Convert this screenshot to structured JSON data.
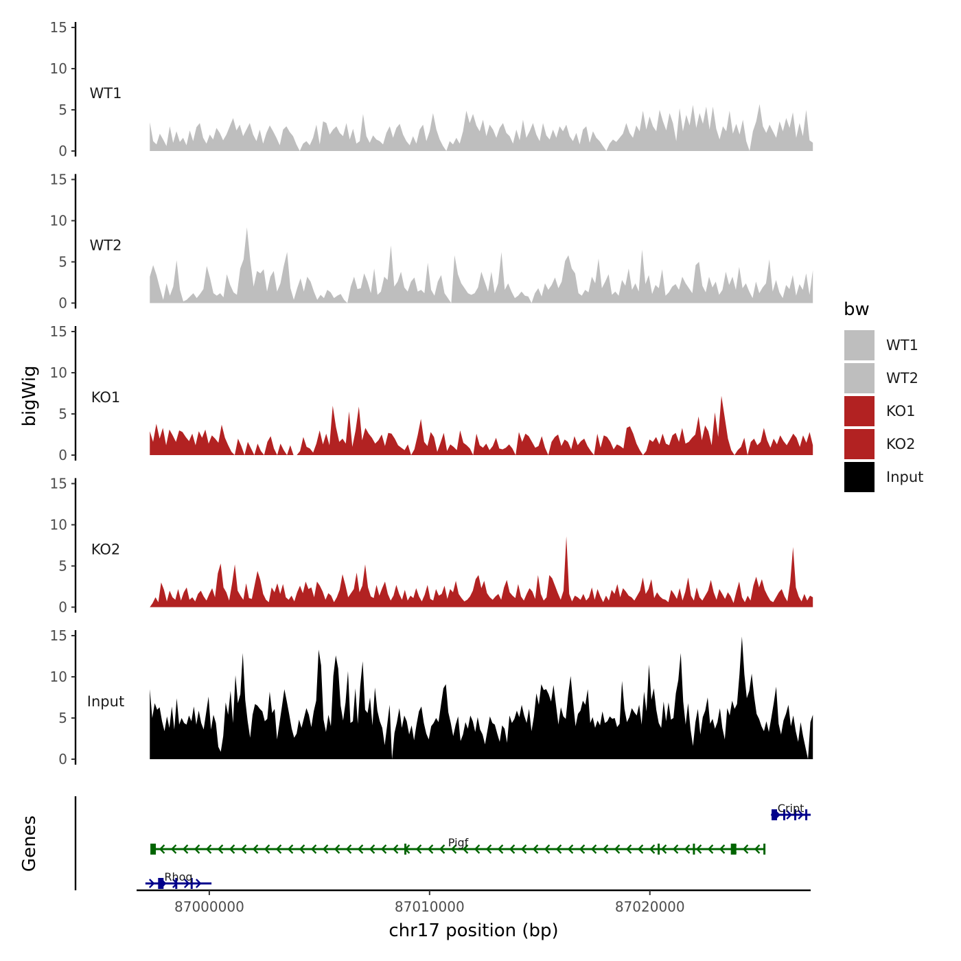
{
  "chart_data": {
    "type": "area",
    "title": "",
    "ylabel": "bigWig",
    "xlabel": "chr17 position (bp)",
    "xlim": [
      86996700,
      87027300
    ],
    "ylim": [
      0,
      15
    ],
    "y_ticks": [
      0,
      5,
      10,
      15
    ],
    "y_tick_labels": [
      "0",
      "5",
      "10",
      "15"
    ],
    "x_ticks": [
      87000000,
      87010000,
      87020000
    ],
    "x_tick_labels": [
      "87000000",
      "87010000",
      "87020000"
    ],
    "x_range": [
      86997300,
      87027400
    ],
    "genes_label": "Genes",
    "legend": {
      "title": "bw",
      "position": "right",
      "entries": [
        {
          "label": "WT1",
          "color": "#BEBEBE"
        },
        {
          "label": "WT2",
          "color": "#BEBEBE"
        },
        {
          "label": "KO1",
          "color": "#B22222"
        },
        {
          "label": "KO2",
          "color": "#B22222"
        },
        {
          "label": "Input",
          "color": "#000000"
        }
      ]
    },
    "series": [
      {
        "name": "WT1",
        "color": "#BEBEBE",
        "values": [
          3.5,
          1.2,
          0.8,
          2.1,
          1.4,
          0.6,
          3.0,
          1.0,
          2.4,
          1.1,
          1.6,
          0.7,
          2.5,
          1.2,
          2.9,
          3.4,
          1.6,
          0.9,
          2.0,
          1.4,
          2.8,
          2.2,
          1.3,
          2.0,
          3.0,
          4.0,
          2.5,
          3.2,
          1.8,
          2.6,
          3.4,
          2.0,
          1.2,
          2.6,
          0.9,
          2.2,
          3.1,
          2.4,
          1.6,
          0.7,
          2.6,
          3.0,
          2.3,
          1.8,
          0.8,
          0,
          0.9,
          1.2,
          0.7,
          1.6,
          3.2,
          0.8,
          3.6,
          3.4,
          2.0,
          2.6,
          3.0,
          2.2,
          1.8,
          3.4,
          1.4,
          2.7,
          0.9,
          1.2,
          4.5,
          1.8,
          1.0,
          1.9,
          1.4,
          1.2,
          0.8,
          2.2,
          3.0,
          1.6,
          2.8,
          3.3,
          2.0,
          1.2,
          0.7,
          1.8,
          0.9,
          2.6,
          3.2,
          1.2,
          2.4,
          4.6,
          2.6,
          1.4,
          0.6,
          0,
          1.2,
          0.8,
          1.6,
          0.9,
          2.4,
          4.9,
          3.4,
          4.5,
          3.1,
          2.4,
          3.8,
          1.8,
          3.2,
          2.6,
          1.6,
          2.8,
          3.4,
          2.2,
          1.8,
          0.9,
          2.6,
          1.3,
          3.8,
          1.6,
          2.4,
          3.4,
          2.0,
          1.2,
          3.4,
          1.9,
          1.4,
          2.6,
          1.6,
          3.0,
          2.4,
          3.2,
          1.8,
          1.2,
          2.2,
          0.8,
          2.6,
          3.0,
          1.0,
          2.4,
          1.6,
          1.2,
          0.6,
          0,
          0.9,
          1.4,
          1.1,
          1.6,
          2.1,
          3.4,
          2.2,
          1.6,
          3.1,
          2.4,
          4.9,
          2.6,
          4.2,
          3.0,
          2.4,
          5.0,
          3.6,
          2.5,
          4.6,
          3.4,
          1.2,
          5.2,
          2.4,
          4.4,
          3.1,
          5.6,
          2.8,
          4.6,
          3.3,
          5.4,
          2.6,
          5.4,
          2.7,
          1.4,
          3.0,
          2.4,
          4.9,
          2.1,
          3.3,
          2.0,
          3.8,
          1.2,
          0,
          2.4,
          3.6,
          5.7,
          3.0,
          2.2,
          3.2,
          2.4,
          1.6,
          3.6,
          2.4,
          4.0,
          2.8,
          4.7,
          1.6,
          3.4,
          1.8,
          5.0,
          1.3,
          1.0
        ]
      },
      {
        "name": "WT2",
        "color": "#BEBEBE",
        "values": [
          3.2,
          4.6,
          3.4,
          1.8,
          0.4,
          2.4,
          0.9,
          2.0,
          5.2,
          1.6,
          0.2,
          0.4,
          0.8,
          1.2,
          0.6,
          1.1,
          1.7,
          4.5,
          3.0,
          1.2,
          0.9,
          1.2,
          0.7,
          3.5,
          2.2,
          1.3,
          1.0,
          4.2,
          5.3,
          9.2,
          5.2,
          2.0,
          3.9,
          3.6,
          4.1,
          1.4,
          3.2,
          3.9,
          1.4,
          2.4,
          4.5,
          6.2,
          1.8,
          0.4,
          1.8,
          3.0,
          1.4,
          3.2,
          2.6,
          1.4,
          0.4,
          1.0,
          0.6,
          1.6,
          1.3,
          0.6,
          0.9,
          1.1,
          0.4,
          0,
          2.0,
          3.2,
          1.7,
          1.8,
          3.6,
          2.6,
          1.2,
          4.2,
          1.0,
          1.4,
          3.2,
          2.8,
          7.0,
          2.0,
          2.6,
          3.8,
          1.9,
          1.4,
          2.6,
          3.1,
          1.4,
          1.6,
          1.2,
          4.9,
          1.6,
          0.9,
          2.6,
          3.4,
          1.2,
          0.6,
          0,
          5.8,
          3.5,
          2.4,
          1.8,
          1.2,
          1.0,
          1.2,
          1.9,
          3.8,
          2.6,
          1.4,
          3.8,
          1.2,
          2.4,
          6.2,
          1.6,
          2.4,
          1.4,
          0.6,
          0.9,
          1.4,
          0.9,
          0.8,
          0,
          1.2,
          1.8,
          0.8,
          2.4,
          1.6,
          2.2,
          3.1,
          1.8,
          2.6,
          5.1,
          5.8,
          4.2,
          3.6,
          1.2,
          0.9,
          1.6,
          1.3,
          3.2,
          2.4,
          5.4,
          1.8,
          2.6,
          3.5,
          1.0,
          1.4,
          0.9,
          2.8,
          2.1,
          4.2,
          1.6,
          2.4,
          1.4,
          6.5,
          2.3,
          3.4,
          1.1,
          2.2,
          1.8,
          4.1,
          0.9,
          1.3,
          2.0,
          2.3,
          1.6,
          3.2,
          2.4,
          1.8,
          1.2,
          4.6,
          5.0,
          2.1,
          1.3,
          3.2,
          1.9,
          2.6,
          1.0,
          1.6,
          3.8,
          2.2,
          3.2,
          1.6,
          4.4,
          1.8,
          2.4,
          1.4,
          0.6,
          2.6,
          1.2,
          1.9,
          2.4,
          5.3,
          1.4,
          2.8,
          1.3,
          0.6,
          2.2,
          1.7,
          3.4,
          0.9,
          2.3,
          1.6,
          3.6,
          1.0,
          4.0
        ]
      },
      {
        "name": "KO1",
        "color": "#B22222",
        "values": [
          2.9,
          1.6,
          3.8,
          2.0,
          3.3,
          1.2,
          3.1,
          2.4,
          1.6,
          3.0,
          2.8,
          2.2,
          1.7,
          2.6,
          1.2,
          2.9,
          2.1,
          3.1,
          1.4,
          2.4,
          2.0,
          1.5,
          3.7,
          2.1,
          1.2,
          0.4,
          0,
          2.0,
          1.1,
          0,
          1.6,
          0.8,
          0,
          1.4,
          0.5,
          0,
          1.6,
          2.3,
          0.8,
          0,
          1.4,
          0.6,
          0,
          1.2,
          0,
          0,
          0.5,
          2.2,
          1.0,
          0.8,
          0.3,
          1.4,
          3.0,
          1.3,
          2.6,
          1.2,
          6.0,
          3.4,
          1.6,
          2.0,
          1.4,
          5.3,
          1.0,
          3.0,
          5.9,
          1.8,
          3.3,
          2.6,
          2.1,
          1.4,
          1.8,
          2.5,
          1.1,
          2.7,
          2.6,
          2.0,
          1.2,
          0.9,
          0.6,
          1.3,
          0,
          0.7,
          2.4,
          4.4,
          1.6,
          1.1,
          2.8,
          2.2,
          0.4,
          1.5,
          2.7,
          0.5,
          1.3,
          1.0,
          0.6,
          3.0,
          1.5,
          1.2,
          0.8,
          0,
          2.6,
          1.2,
          0.9,
          1.4,
          0.6,
          1.1,
          2.1,
          0.8,
          0.7,
          0.9,
          1.3,
          0.8,
          0,
          2.8,
          1.6,
          2.6,
          2.3,
          1.6,
          0.9,
          1.1,
          2.3,
          0.9,
          0,
          1.6,
          2.2,
          2.5,
          1.1,
          1.9,
          1.6,
          0.7,
          2.3,
          1.2,
          1.7,
          2.0,
          1.1,
          0.5,
          0,
          2.6,
          0.9,
          2.4,
          2.2,
          1.6,
          0.7,
          1.3,
          1.1,
          0.8,
          3.3,
          3.5,
          2.6,
          1.4,
          0.6,
          0,
          0.5,
          1.9,
          1.6,
          2.2,
          1.3,
          2.6,
          1.4,
          1.2,
          2.4,
          2.7,
          1.6,
          3.3,
          1.4,
          1.6,
          2.1,
          2.5,
          4.7,
          1.8,
          3.6,
          2.9,
          1.2,
          5.2,
          2.2,
          7.2,
          4.6,
          2.0,
          0.6,
          0,
          0.6,
          1.0,
          2.1,
          0,
          1.6,
          2.0,
          1.2,
          1.6,
          3.3,
          1.8,
          0.9,
          2.0,
          1.3,
          2.4,
          1.7,
          1.2,
          1.9,
          2.6,
          2.1,
          1.0,
          2.4,
          1.5,
          2.8,
          1.2
        ]
      },
      {
        "name": "KO2",
        "color": "#B22222",
        "values": [
          0,
          0.5,
          1.2,
          0.6,
          3.0,
          2.1,
          0.7,
          2.0,
          1.2,
          0.9,
          2.2,
          0.8,
          1.8,
          2.4,
          0.9,
          1.2,
          0.7,
          1.6,
          2.0,
          1.3,
          0.8,
          1.6,
          2.3,
          1.2,
          4.1,
          5.3,
          2.4,
          1.8,
          0.8,
          2.8,
          5.2,
          2.0,
          1.4,
          0.9,
          2.9,
          1.1,
          1.0,
          2.7,
          4.4,
          3.3,
          1.6,
          0.9,
          0.6,
          2.4,
          1.8,
          2.9,
          1.6,
          2.8,
          1.2,
          0.9,
          1.4,
          0.7,
          1.8,
          2.6,
          1.7,
          3.1,
          2.2,
          2.4,
          1.2,
          3.1,
          2.6,
          1.9,
          0.9,
          1.7,
          1.4,
          0.6,
          1.2,
          2.1,
          4.0,
          2.7,
          1.2,
          1.7,
          2.2,
          4.2,
          1.8,
          2.6,
          5.2,
          2.4,
          1.3,
          1.1,
          2.7,
          1.4,
          2.3,
          3.1,
          1.6,
          0.8,
          1.4,
          2.7,
          1.6,
          0.9,
          2.1,
          0.8,
          1.4,
          1.1,
          2.3,
          1.3,
          0.7,
          1.5,
          2.7,
          1.0,
          0.8,
          2.2,
          1.4,
          1.6,
          2.6,
          1.0,
          2.2,
          1.8,
          3.2,
          1.6,
          1.1,
          0.7,
          0.9,
          1.3,
          2.0,
          3.4,
          3.9,
          2.3,
          3.2,
          1.7,
          1.2,
          0.9,
          1.3,
          1.6,
          0.9,
          2.4,
          3.3,
          1.8,
          1.4,
          1.1,
          2.8,
          1.3,
          0.8,
          1.6,
          2.3,
          1.9,
          1.0,
          3.9,
          1.6,
          0.8,
          1.2,
          3.9,
          3.5,
          2.6,
          1.7,
          0.9,
          2.0,
          8.6,
          1.6,
          0.7,
          1.4,
          1.2,
          0.9,
          1.6,
          0.8,
          1.2,
          2.4,
          0.9,
          2.2,
          1.3,
          0.6,
          1.4,
          0.8,
          2.1,
          1.6,
          2.8,
          1.2,
          2.3,
          1.9,
          1.4,
          1.2,
          0.8,
          1.4,
          2.0,
          3.6,
          1.6,
          2.2,
          3.4,
          1.1,
          1.8,
          1.3,
          1.0,
          0.9,
          0.6,
          2.1,
          1.6,
          1.0,
          2.3,
          0.8,
          1.9,
          3.6,
          1.4,
          0.8,
          2.4,
          1.2,
          0.8,
          1.4,
          2.0,
          3.3,
          1.8,
          0.9,
          2.2,
          1.6,
          1.0,
          1.8,
          1.3,
          0.5,
          1.9,
          3.1,
          1.2,
          0.6,
          1.4,
          0.8,
          2.6,
          3.7,
          2.4,
          3.4,
          2.1,
          1.4,
          0.8,
          0.6,
          1.2,
          1.8,
          2.2,
          1.3,
          0.7,
          3.0,
          7.3,
          2.4,
          1.3,
          0.7,
          1.6,
          0.8,
          1.4,
          1.2
        ]
      },
      {
        "name": "Input",
        "color": "#000000",
        "values": [
          8.5,
          5.0,
          6.8,
          6.0,
          6.3,
          4.6,
          3.4,
          5.2,
          3.8,
          6.4,
          3.6,
          7.4,
          4.2,
          5.0,
          4.4,
          4.2,
          5.3,
          4.6,
          6.4,
          4.2,
          5.9,
          4.4,
          3.6,
          5.6,
          7.6,
          3.6,
          5.4,
          4.4,
          1.5,
          0.9,
          2.8,
          6.9,
          5.4,
          8.3,
          4.4,
          10.2,
          6.8,
          7.9,
          12.9,
          7.2,
          4.6,
          2.6,
          5.4,
          6.7,
          6.5,
          6.1,
          5.8,
          4.6,
          4.9,
          8.2,
          5.6,
          6.1,
          2.4,
          4.4,
          6.4,
          8.5,
          7.0,
          5.4,
          3.7,
          2.6,
          3.1,
          4.8,
          3.8,
          5.0,
          6.2,
          5.4,
          3.9,
          5.8,
          7.1,
          13.3,
          11.4,
          4.8,
          3.3,
          5.4,
          4.0,
          10.1,
          12.6,
          11.0,
          6.5,
          4.7,
          6.9,
          10.7,
          4.4,
          4.6,
          8.6,
          4.3,
          8.9,
          11.9,
          6.0,
          5.6,
          7.5,
          4.1,
          8.7,
          5.9,
          4.6,
          3.8,
          1.7,
          4.1,
          6.6,
          0,
          3.2,
          4.5,
          6.2,
          3.8,
          5.3,
          4.6,
          3.0,
          4.1,
          2.3,
          4.2,
          5.8,
          6.4,
          4.4,
          3.1,
          2.4,
          4.0,
          4.4,
          5.0,
          4.5,
          6.6,
          8.6,
          9.1,
          5.7,
          4.4,
          2.8,
          4.2,
          5.2,
          2.2,
          3.0,
          4.5,
          3.7,
          5.3,
          4.6,
          3.3,
          5.1,
          3.6,
          3.0,
          1.8,
          3.5,
          5.2,
          4.4,
          4.2,
          3.1,
          2.1,
          4.1,
          3.7,
          2.0,
          5.3,
          4.4,
          4.9,
          5.9,
          5.1,
          6.6,
          5.3,
          4.4,
          6.1,
          3.4,
          5.2,
          8.0,
          6.6,
          9.1,
          8.4,
          8.5,
          7.9,
          7.0,
          9.0,
          6.6,
          4.2,
          6.3,
          5.2,
          4.9,
          7.9,
          10.1,
          6.9,
          4.0,
          5.5,
          5.9,
          7.1,
          6.6,
          8.5,
          4.4,
          5.1,
          3.8,
          4.7,
          4.1,
          5.8,
          4.4,
          4.6,
          5.2,
          4.9,
          5.0,
          3.9,
          4.3,
          9.5,
          6.1,
          4.5,
          5.1,
          6.2,
          5.7,
          5.3,
          6.6,
          4.2,
          8.2,
          5.8,
          11.5,
          7.2,
          8.6,
          6.0,
          4.4,
          3.8,
          7.0,
          4.6,
          6.9,
          4.8,
          5.0,
          8.0,
          9.6,
          12.9,
          7.0,
          4.2,
          6.8,
          3.6,
          1.6,
          4.5,
          6.1,
          3.0,
          5.1,
          5.9,
          7.5,
          4.3,
          4.9,
          3.7,
          4.5,
          6.2,
          3.8,
          2.4,
          6.2,
          5.3,
          7.1,
          6.1,
          6.7,
          10.3,
          14.9,
          10.3,
          7.4,
          8.3,
          10.4,
          7.6,
          5.5,
          4.9,
          4.0,
          3.4,
          4.6,
          3.3,
          5.0,
          6.8,
          8.8,
          4.3,
          3.0,
          4.7,
          5.5,
          6.6,
          4.0,
          5.3,
          3.4,
          2.1,
          4.5,
          2.8,
          1.4,
          0,
          4.5,
          5.4
        ]
      }
    ],
    "genes": [
      {
        "name": "Cript",
        "strand": "+",
        "start": 87025500,
        "end": 87027300,
        "row": 0,
        "color": "#00008B",
        "exons": [
          87025650,
          87026100,
          87026600,
          87027100
        ]
      },
      {
        "name": "Pigf",
        "strand": "-",
        "start": 86997400,
        "end": 87025200,
        "row": 1,
        "color": "#006400",
        "exons": [
          86997450,
          87008900,
          87020400,
          87022000,
          87023800,
          87025200
        ]
      },
      {
        "name": "Rhoq",
        "strand": "+",
        "start": 86997100,
        "end": 87000100,
        "row": 2,
        "color": "#00008B",
        "exons": [
          86997800,
          86998500,
          86999200
        ]
      }
    ]
  }
}
